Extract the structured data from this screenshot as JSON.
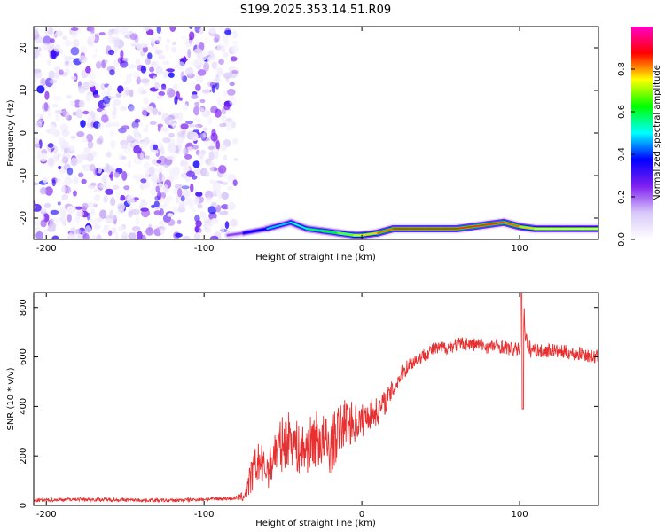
{
  "title": "S199.2025.353.14.51.R09",
  "chart_data": [
    {
      "type": "heatmap",
      "xlabel": "Height of straight line (km)",
      "ylabel": "Frequency (Hz)",
      "xlim": [
        -208,
        150
      ],
      "ylim": [
        -25,
        25
      ],
      "x_ticks": [
        -200,
        -100,
        0,
        100
      ],
      "y_ticks": [
        -20,
        -10,
        0,
        10,
        20
      ],
      "colorbar": {
        "label": "Normalized spectral amplitude",
        "range": [
          0.0,
          1.0
        ],
        "ticks": [
          0.0,
          0.2,
          0.4,
          0.6,
          0.8
        ],
        "tick_labels": [
          "0.0",
          "0.2",
          "0.4",
          "0.6",
          "0.8"
        ],
        "colors": [
          "#ffffff",
          "#d8c8f8",
          "#8020f0",
          "#0000ff",
          "#00ffff",
          "#00ff00",
          "#ffff00",
          "#ff0000",
          "#ff00c8"
        ]
      },
      "noise_region": {
        "x": [
          -208,
          -82
        ],
        "y": [
          -25,
          25
        ],
        "level": 0.1
      },
      "signal_track": {
        "x": [
          -85,
          -75,
          -60,
          -45,
          -35,
          -25,
          -15,
          -5,
          0,
          10,
          20,
          30,
          40,
          50,
          60,
          70,
          80,
          90,
          100,
          110,
          120,
          130,
          140,
          150
        ],
        "y": [
          -24,
          -23.5,
          -22.5,
          -21,
          -22.5,
          -23,
          -23.5,
          -24,
          -24,
          -23.5,
          -22.5,
          -22.5,
          -22.5,
          -22.5,
          -22.5,
          -22,
          -21.5,
          -21,
          -22,
          -22.5,
          -22.5,
          -22.5,
          -22.5,
          -22.5
        ],
        "peak_amplitude": [
          0.15,
          0.3,
          0.45,
          0.5,
          0.55,
          0.6,
          0.65,
          0.7,
          0.75,
          0.8,
          0.85,
          0.85,
          0.85,
          0.85,
          0.85,
          0.85,
          0.85,
          0.85,
          0.8,
          0.75,
          0.75,
          0.75,
          0.75,
          0.75
        ]
      }
    },
    {
      "type": "line",
      "xlabel": "Height of straight line (km)",
      "ylabel": "SNR (10 * v/v)",
      "xlim": [
        -208,
        150
      ],
      "ylim": [
        0,
        860
      ],
      "x_ticks": [
        -200,
        -100,
        0,
        100
      ],
      "y_ticks": [
        0,
        200,
        400,
        600,
        800
      ],
      "series": [
        {
          "color": "#e83030",
          "x": [
            -208,
            -180,
            -150,
            -120,
            -100,
            -85,
            -80,
            -75,
            -72,
            -68,
            -65,
            -62,
            -58,
            -55,
            -50,
            -45,
            -40,
            -35,
            -30,
            -25,
            -20,
            -15,
            -10,
            -5,
            0,
            5,
            10,
            15,
            20,
            25,
            30,
            35,
            40,
            45,
            50,
            55,
            60,
            65,
            70,
            75,
            80,
            85,
            90,
            95,
            100,
            102,
            105,
            110,
            115,
            120,
            125,
            130,
            135,
            140,
            145,
            150
          ],
          "y": [
            20,
            25,
            22,
            20,
            25,
            28,
            30,
            35,
            80,
            150,
            180,
            140,
            160,
            220,
            250,
            280,
            220,
            230,
            270,
            260,
            230,
            300,
            340,
            330,
            340,
            370,
            380,
            420,
            470,
            530,
            570,
            590,
            610,
            630,
            635,
            640,
            650,
            655,
            650,
            650,
            640,
            645,
            640,
            630,
            630,
            810,
            630,
            630,
            620,
            630,
            620,
            620,
            610,
            615,
            600,
            600
          ],
          "noise_amplitude": [
            10,
            10,
            10,
            10,
            10,
            10,
            12,
            30,
            80,
            120,
            120,
            120,
            120,
            140,
            160,
            160,
            150,
            150,
            170,
            170,
            170,
            150,
            140,
            120,
            100,
            90,
            80,
            70,
            60,
            50,
            45,
            40,
            40,
            40,
            40,
            40,
            40,
            40,
            40,
            40,
            40,
            40,
            40,
            40,
            40,
            80,
            60,
            40,
            40,
            40,
            40,
            40,
            40,
            40,
            40,
            40
          ]
        }
      ]
    }
  ]
}
